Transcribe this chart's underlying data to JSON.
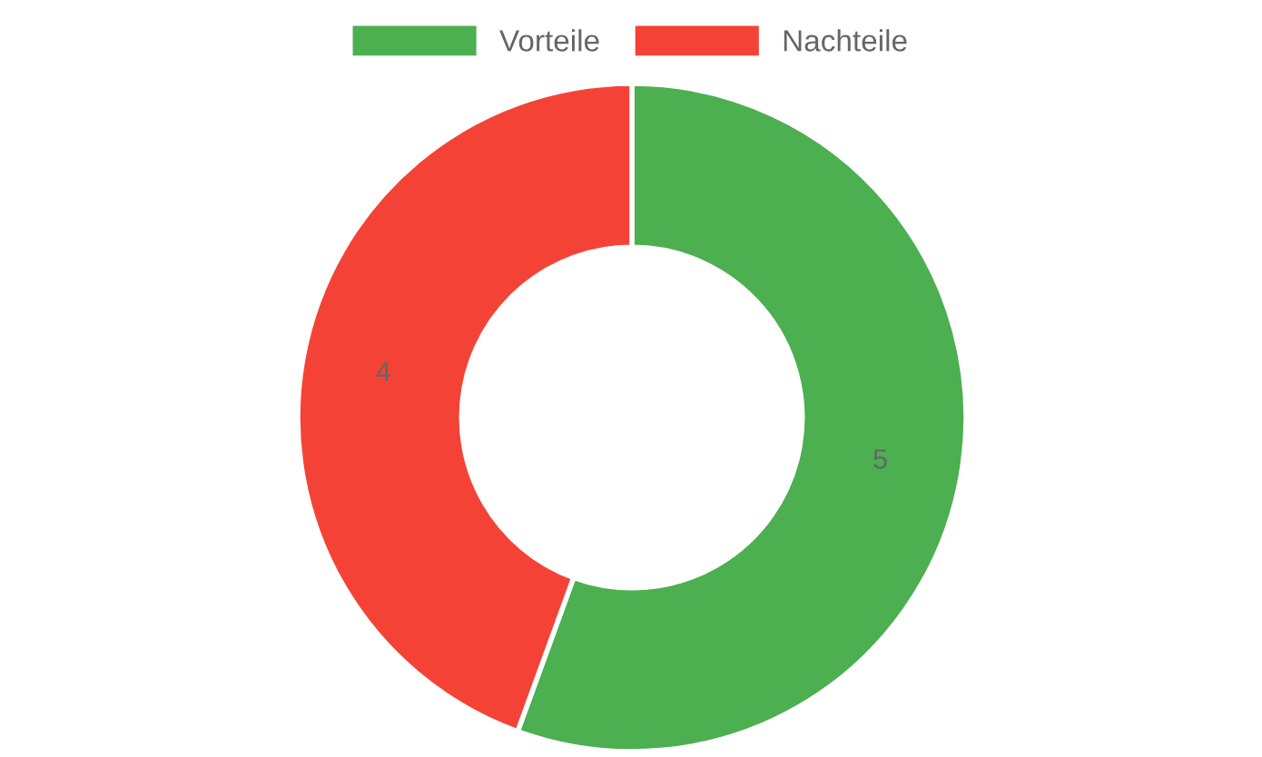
{
  "chart_data": {
    "type": "donut",
    "categories": [
      "Vorteile",
      "Nachteile"
    ],
    "values": [
      5,
      4
    ],
    "colors": [
      "#4caf50",
      "#f44336"
    ],
    "data_labels": true,
    "legend": "top"
  }
}
